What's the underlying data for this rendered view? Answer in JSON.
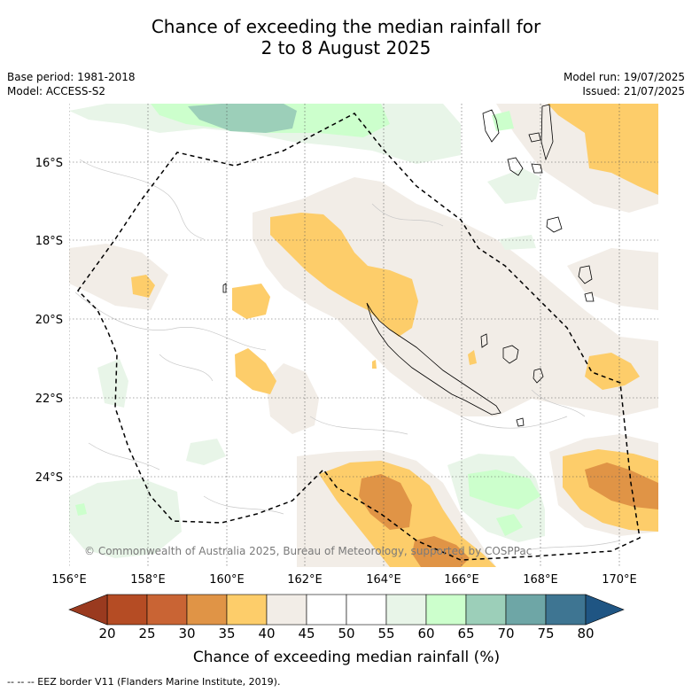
{
  "title": {
    "line1": "Chance of exceeding the median rainfall for",
    "line2": "2 to 8 August 2025"
  },
  "meta": {
    "base_period": "Base period: 1981-2018",
    "model": "Model: ACCESS-S2",
    "model_run": "Model run: 19/07/2025",
    "issued": "Issued: 21/07/2025"
  },
  "map": {
    "lon_labels": [
      "156°E",
      "158°E",
      "160°E",
      "162°E",
      "164°E",
      "166°E",
      "168°E",
      "170°E"
    ],
    "lat_labels": [
      "16°S",
      "18°S",
      "20°S",
      "22°S",
      "24°S"
    ],
    "copyright": "© Commonwealth of Australia 2025, Bureau of Meteorology, supported by COSPPac"
  },
  "colorbar": {
    "ticks": [
      "20",
      "25",
      "30",
      "35",
      "40",
      "45",
      "50",
      "55",
      "60",
      "65",
      "70",
      "75",
      "80"
    ],
    "colors": [
      "#b54c24",
      "#c96434",
      "#e09446",
      "#fdcd6a",
      "#f2ede7",
      "#ffffff",
      "#ffffff",
      "#e8f5e8",
      "#ccffcc",
      "#9ccfb9",
      "#6ea6a6",
      "#3e7592"
    ],
    "under_color": "#9a3a1f",
    "over_color": "#1f5583",
    "title": "Chance of exceeding median rainfall (%)"
  },
  "footnote": "--  --  -- EEZ border V11 (Flanders Marine Institute, 2019)."
}
